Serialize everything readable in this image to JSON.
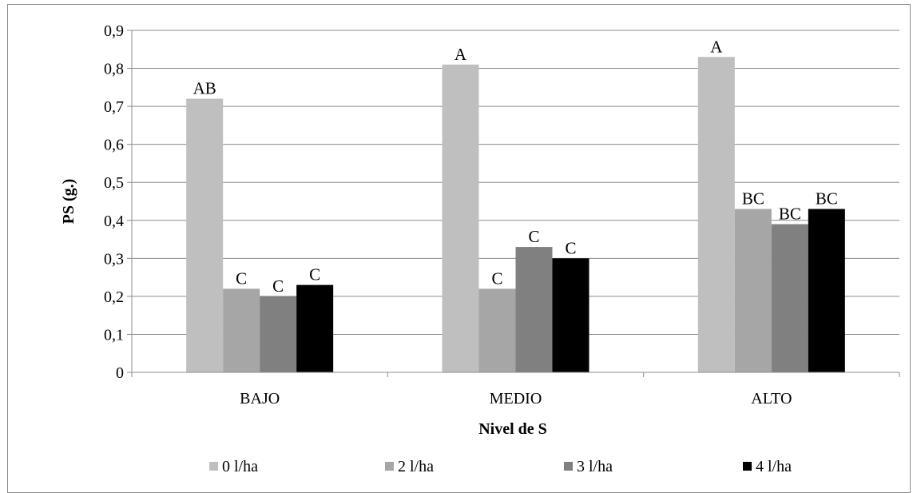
{
  "chart_data": {
    "type": "bar",
    "title": "",
    "xlabel": "Nivel de S",
    "ylabel": "PS (g.)",
    "ylim": [
      0,
      0.9
    ],
    "yticks": [
      "0",
      "0,1",
      "0,2",
      "0,3",
      "0,4",
      "0,5",
      "0,6",
      "0,7",
      "0,8",
      "0,9"
    ],
    "grid": true,
    "legend": "bottom",
    "categories": [
      "BAJO",
      "MEDIO",
      "ALTO"
    ],
    "series": [
      {
        "name": "0 l/ha",
        "color": "#bfbfbf",
        "values": [
          0.72,
          0.81,
          0.83
        ],
        "labels": [
          "AB",
          "A",
          "A"
        ]
      },
      {
        "name": "2 l/ha",
        "color": "#a6a6a6",
        "values": [
          0.22,
          0.22,
          0.43
        ],
        "labels": [
          "C",
          "C",
          "BC"
        ]
      },
      {
        "name": "3 l/ha",
        "color": "#808080",
        "values": [
          0.2,
          0.33,
          0.39
        ],
        "labels": [
          "C",
          "C",
          "BC"
        ]
      },
      {
        "name": "4 l/ha",
        "color": "#000000",
        "values": [
          0.23,
          0.3,
          0.43
        ],
        "labels": [
          "C",
          "C",
          "BC"
        ]
      }
    ]
  }
}
